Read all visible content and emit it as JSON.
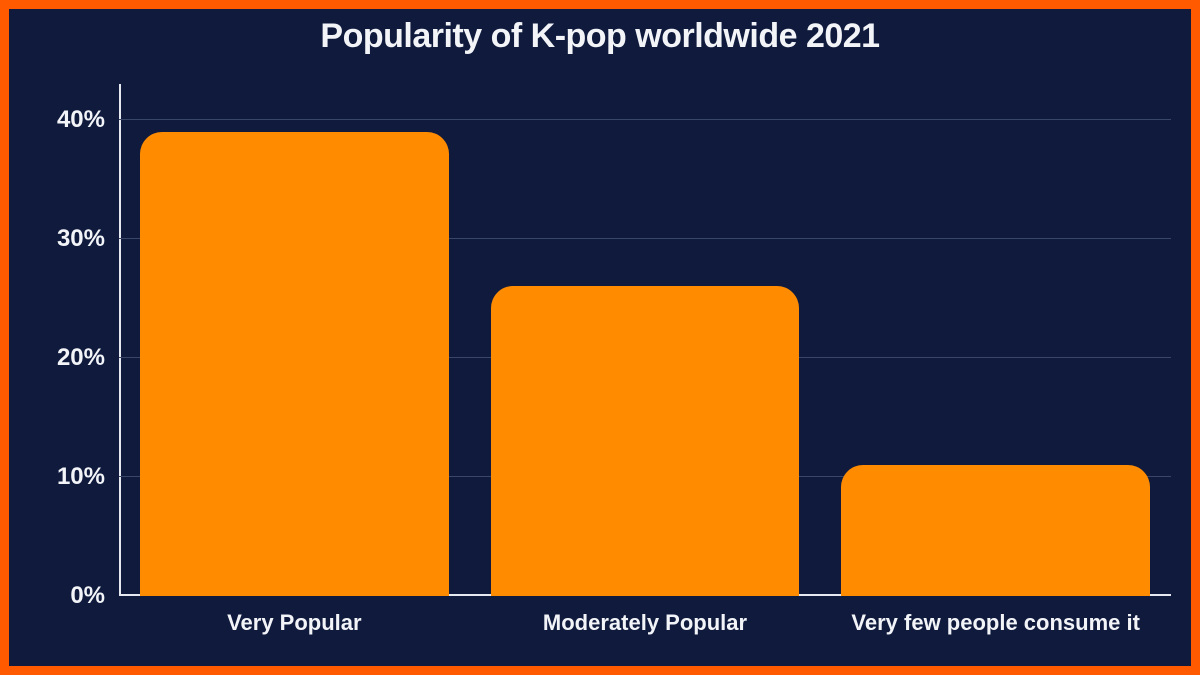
{
  "chart": {
    "type": "bar",
    "title": "Popularity of K-pop worldwide 2021",
    "title_fontsize": 34,
    "title_color": "#f2f4f8",
    "background_color": "#0f1a3d",
    "frame_border_color": "#ff5a00",
    "frame_border_width": 9,
    "grid_color": "#3a4668",
    "axis_line_color": "#e6e9f0",
    "tick_label_color": "#f2f4f8",
    "tick_label_fontsize": 24,
    "x_tick_label_fontsize": 22,
    "bar_color": "#ff8c00",
    "y_axis": {
      "min": 0,
      "max": 43,
      "ticks": [
        0,
        10,
        20,
        30,
        40
      ],
      "tick_labels": [
        "0%",
        "10%",
        "20%",
        "30%",
        "40%"
      ]
    },
    "categories": [
      "Very Popular",
      "Moderately Popular",
      "Very few people consume it"
    ],
    "values": [
      39,
      26,
      11
    ]
  }
}
